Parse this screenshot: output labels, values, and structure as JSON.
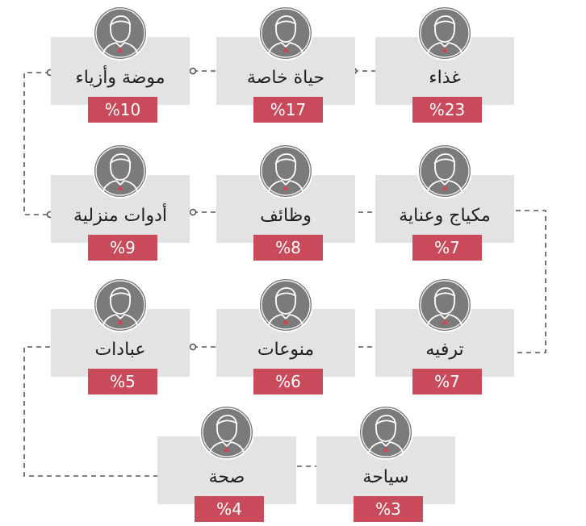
{
  "colors": {
    "card": "#e3e3e3",
    "badge": "#c94a5a",
    "avatar": "#7b7b7b",
    "accent": "#c94a5a",
    "line": "#555555"
  },
  "icon": "person-avatar-icon",
  "nodes": [
    {
      "id": "food",
      "label": "غذاء",
      "value": "%23"
    },
    {
      "id": "private",
      "label": "حياة خاصة",
      "value": "%17"
    },
    {
      "id": "fashion",
      "label": "موضة وأزياء",
      "value": "%10"
    },
    {
      "id": "makeup",
      "label": "مكياج وعناية",
      "value": "%7"
    },
    {
      "id": "jobs",
      "label": "وظائف",
      "value": "%8"
    },
    {
      "id": "household",
      "label": "أدوات منزلية",
      "value": "%9"
    },
    {
      "id": "entertain",
      "label": "ترفيه",
      "value": "%7"
    },
    {
      "id": "misc",
      "label": "منوعات",
      "value": "%6"
    },
    {
      "id": "worship",
      "label": "عبادات",
      "value": "%5"
    },
    {
      "id": "tourism",
      "label": "سياحة",
      "value": "%3"
    },
    {
      "id": "health",
      "label": "صحة",
      "value": "%4"
    }
  ]
}
